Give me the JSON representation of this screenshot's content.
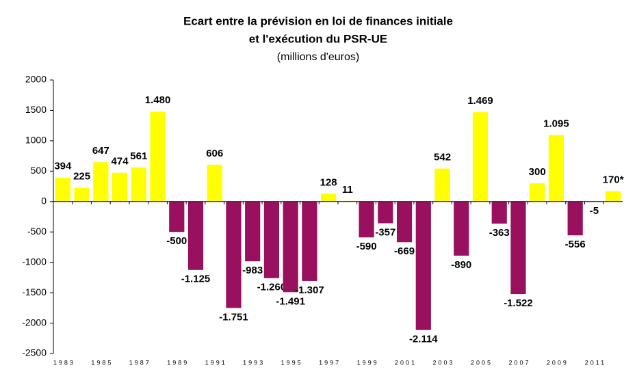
{
  "chart_data": {
    "type": "bar",
    "title": "Ecart entre la prévision en loi de finances initiale",
    "title_line2": "et l'exécution du PSR-UE",
    "subtitle": "(millions d'euros)",
    "categories": [
      "1983",
      null,
      "1985",
      null,
      "1987",
      null,
      "1989",
      null,
      "1991",
      null,
      "1993",
      null,
      "1995",
      null,
      "1997",
      null,
      "1999",
      null,
      "2001",
      null,
      "2003",
      null,
      "2005",
      null,
      "2007",
      null,
      "2009",
      null,
      "2011",
      null
    ],
    "values": [
      394,
      225,
      647,
      474,
      561,
      1480,
      -500,
      -1125,
      606,
      -1751,
      -983,
      -1260,
      -1491,
      -1307,
      128,
      11,
      -590,
      -357,
      -669,
      -2114,
      542,
      -890,
      1469,
      -363,
      -1522,
      300,
      1095,
      -556,
      -5,
      170
    ],
    "value_labels": [
      "394",
      "225",
      "647",
      "474",
      "561",
      "1.480",
      "-500",
      "-1.125",
      "606",
      "-1.751",
      "-983",
      "-1.260",
      "-1.491",
      "-1.307",
      "128",
      "11",
      "-590",
      "-357",
      "-669",
      "-2.114",
      "542",
      "-890",
      "1.469",
      "-363",
      "-1.522",
      "300",
      "1.095",
      "-556",
      "-5",
      "170*"
    ],
    "color": "#ffff00",
    "negative_color": "#99105f",
    "ylim": [
      -2500,
      2000
    ],
    "yticks": [
      -2500,
      -2000,
      -1500,
      -1000,
      -500,
      0,
      500,
      1000,
      1500,
      2000
    ],
    "grid": false
  }
}
